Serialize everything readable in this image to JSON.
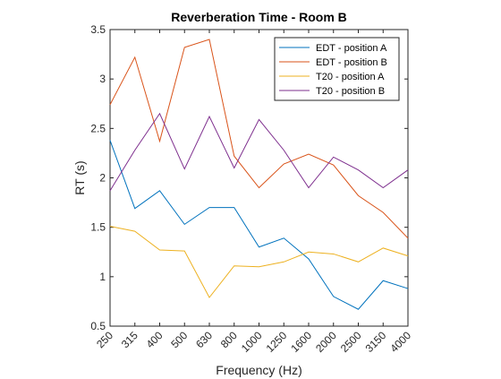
{
  "chart_data": {
    "type": "line",
    "title": "Reverberation Time - Room B",
    "xlabel": "Frequency (Hz)",
    "ylabel": "RT (s)",
    "categories": [
      "250",
      "315",
      "400",
      "500",
      "630",
      "800",
      "1000",
      "1250",
      "1600",
      "2000",
      "2500",
      "3150",
      "4000"
    ],
    "ylim": [
      0.5,
      3.5
    ],
    "yticks": [
      0.5,
      1,
      1.5,
      2,
      2.5,
      3,
      3.5
    ],
    "ytick_labels": [
      "0.5",
      "1",
      "1.5",
      "2",
      "2.5",
      "3",
      "3.5"
    ],
    "grid": false,
    "legend_position": "top-right",
    "series": [
      {
        "name": "EDT - position A",
        "color": "#0072BD",
        "values": [
          2.38,
          1.69,
          1.87,
          1.53,
          1.7,
          1.7,
          1.3,
          1.39,
          1.18,
          0.8,
          0.67,
          0.96,
          0.88
        ]
      },
      {
        "name": "EDT - position B",
        "color": "#D95319",
        "values": [
          2.74,
          3.22,
          2.37,
          3.32,
          3.4,
          2.22,
          1.9,
          2.14,
          2.24,
          2.13,
          1.82,
          1.65,
          1.39
        ]
      },
      {
        "name": "T20 - position A",
        "color": "#EDB120",
        "values": [
          1.51,
          1.46,
          1.27,
          1.26,
          0.79,
          1.11,
          1.1,
          1.15,
          1.25,
          1.23,
          1.15,
          1.29,
          1.21
        ]
      },
      {
        "name": "T20 - position B",
        "color": "#7E2F8E",
        "values": [
          1.87,
          2.28,
          2.65,
          2.09,
          2.62,
          2.1,
          2.59,
          2.28,
          1.9,
          2.21,
          2.08,
          1.9,
          2.08
        ]
      }
    ]
  }
}
